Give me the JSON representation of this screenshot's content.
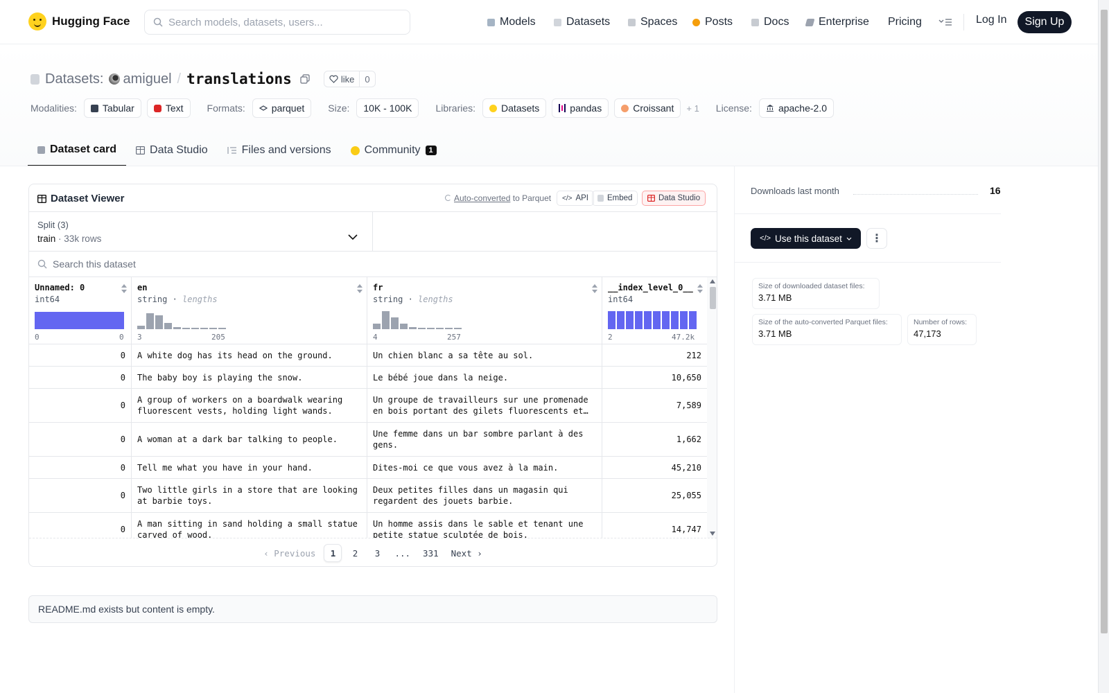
{
  "nav": {
    "brand": "Hugging Face",
    "search_placeholder": "Search models, datasets, users...",
    "items": [
      {
        "label": "Models",
        "icon": "models-icon",
        "color": "#9ca3af"
      },
      {
        "label": "Datasets",
        "icon": "datasets-icon",
        "color": "#d1d5db"
      },
      {
        "label": "Spaces",
        "icon": "spaces-icon",
        "color": "#9ca3af"
      },
      {
        "label": "Posts",
        "icon": "posts-icon",
        "color": "#f59e0b"
      },
      {
        "label": "Docs",
        "icon": "docs-icon",
        "color": "#9ca3af"
      },
      {
        "label": "Enterprise",
        "icon": "enterprise-icon",
        "color": "#6b7280"
      },
      {
        "label": "Pricing"
      }
    ],
    "login": "Log In",
    "signup": "Sign Up"
  },
  "header": {
    "section": "Datasets:",
    "owner": "amiguel",
    "separator": "/",
    "name": "translations",
    "like_label": "like",
    "like_count": "0",
    "modalities_label": "Modalities:",
    "modalities": [
      "Tabular",
      "Text"
    ],
    "formats_label": "Formats:",
    "formats": [
      "parquet"
    ],
    "size_label": "Size:",
    "size": "10K - 100K",
    "libraries_label": "Libraries:",
    "libraries": [
      "Datasets",
      "pandas",
      "Croissant"
    ],
    "libraries_more": "+ 1",
    "license_label": "License:",
    "license": "apache-2.0"
  },
  "tabs": [
    {
      "label": "Dataset card",
      "active": true
    },
    {
      "label": "Data Studio"
    },
    {
      "label": "Files and versions"
    },
    {
      "label": "Community",
      "badge": "1"
    }
  ],
  "viewer": {
    "title": "Dataset Viewer",
    "auto_converted": "Auto-converted",
    "to_parquet": "to Parquet",
    "api_label": "API",
    "embed_label": "Embed",
    "studio_label": "Data Studio",
    "split_label": "Split (3)",
    "split_value": "train",
    "split_rows": "33k rows",
    "search_placeholder": "Search this dataset",
    "columns": [
      {
        "name": "Unnamed: 0",
        "type": "int64",
        "extra": "",
        "min": "0",
        "max": "0"
      },
      {
        "name": "en",
        "type": "string",
        "extra": "lengths",
        "min": "3",
        "max": "205"
      },
      {
        "name": "fr",
        "type": "string",
        "extra": "lengths",
        "min": "4",
        "max": "257"
      },
      {
        "name": "__index_level_0__",
        "type": "int64",
        "extra": "",
        "min": "2",
        "max": "47.2k"
      }
    ],
    "hist_en": [
      0.2,
      0.9,
      0.75,
      0.35,
      0.12,
      0.05,
      0.04,
      0.03,
      0.03,
      0.02
    ],
    "hist_fr": [
      0.3,
      1.0,
      0.65,
      0.3,
      0.1,
      0.05,
      0.04,
      0.03,
      0.03,
      0.02
    ],
    "hist_idx": [
      1,
      1,
      1,
      1,
      1,
      1,
      1,
      1,
      1,
      1
    ],
    "rows": [
      {
        "unnamed": "0",
        "en": "A white dog has its head on the ground.",
        "fr": "Un chien blanc a sa tête au sol.",
        "idx": "212"
      },
      {
        "unnamed": "0",
        "en": "The baby boy is playing the snow.",
        "fr": "Le bébé joue dans la neige.",
        "idx": "10,650"
      },
      {
        "unnamed": "0",
        "en": "A group of workers on a boardwalk wearing fluorescent vests, holding light wands.",
        "fr": "Un groupe de travailleurs sur une promenade en bois portant des gilets fluorescents et tenant des baguettes lumineuses.",
        "idx": "7,589"
      },
      {
        "unnamed": "0",
        "en": "A woman at a dark bar talking to people.",
        "fr": "Une femme dans un bar sombre parlant à des gens.",
        "idx": "1,662"
      },
      {
        "unnamed": "0",
        "en": "Tell me what you have in your hand.",
        "fr": "Dites-moi ce que vous avez à la main.",
        "idx": "45,210"
      },
      {
        "unnamed": "0",
        "en": "Two little girls in a store that are looking at barbie toys.",
        "fr": "Deux petites filles dans un magasin qui regardent des jouets barbie.",
        "idx": "25,055"
      },
      {
        "unnamed": "0",
        "en": "A man sitting in sand holding a small statue carved of wood.",
        "fr": "Un homme assis dans le sable et tenant une petite statue sculptée de bois.",
        "idx": "14,747"
      }
    ],
    "pager": {
      "prev": "Previous",
      "next": "Next",
      "pages": [
        "1",
        "2",
        "3",
        "...",
        "331"
      ],
      "active": "1"
    }
  },
  "readme_text": "README.md exists but content is empty.",
  "sidebar": {
    "downloads_label": "Downloads last month",
    "downloads_value": "16",
    "use_button": "Use this dataset",
    "stats": [
      {
        "label": "Size of downloaded dataset files:",
        "value": "3.71 MB"
      },
      {
        "label": "Size of the auto-converted Parquet files:",
        "value": "3.71 MB"
      },
      {
        "label": "Number of rows:",
        "value": "47,173"
      }
    ]
  },
  "colors": {
    "accent": "#6366f1",
    "hist_gray": "#9ca3af",
    "dark": "#111827"
  }
}
